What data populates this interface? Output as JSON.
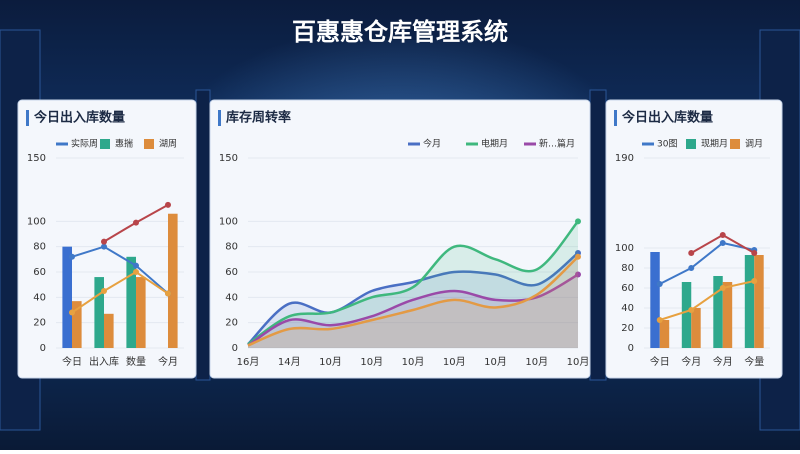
{
  "header": {
    "title": "百惠惠仓库管理系统"
  },
  "chart_data": [
    {
      "type": "combo",
      "title": "今日出入库数量",
      "categories": [
        "今日",
        "出入库",
        "数量",
        "今月"
      ],
      "ylim": [
        0,
        150
      ],
      "yticks": [
        0,
        20,
        40,
        60,
        80,
        100,
        150
      ],
      "series": [
        {
          "name": "实际周",
          "kind": "line",
          "color": "#3f78c8",
          "values": [
            72,
            80,
            65,
            43
          ]
        },
        {
          "name": "惠揣",
          "kind": "bar",
          "color": "#2ea88c",
          "values": [
            80,
            56,
            72,
            null
          ]
        },
        {
          "name": "湖周",
          "kind": "bar",
          "color": "#dd8c3c",
          "values": [
            37,
            27,
            56,
            106
          ]
        },
        {
          "kind": "line",
          "color": "#b8454a",
          "values": [
            null,
            84,
            99,
            113
          ]
        },
        {
          "kind": "line",
          "color": "#e7a140",
          "values": [
            28,
            45,
            60,
            43
          ]
        }
      ]
    },
    {
      "type": "line",
      "title": "库存周转率",
      "fill_area": true,
      "categories": [
        "16月",
        "14月",
        "10月",
        "10月",
        "10月",
        "10月",
        "10月",
        "10月",
        "10月"
      ],
      "ylim": [
        0,
        150
      ],
      "yticks": [
        0,
        20,
        40,
        60,
        80,
        100,
        150
      ],
      "series": [
        {
          "name": "今月",
          "color": "#4a6fc4",
          "values": [
            3,
            35,
            28,
            45,
            52,
            60,
            58,
            50,
            75
          ]
        },
        {
          "name": "电期月",
          "color": "#3fb87e",
          "values": [
            3,
            25,
            28,
            40,
            48,
            80,
            70,
            62,
            100
          ]
        },
        {
          "name": "新…篇月",
          "color": "#9a4aa8",
          "values": [
            2,
            22,
            18,
            25,
            38,
            45,
            38,
            40,
            58
          ]
        },
        {
          "color": "#e39a45",
          "values": [
            2,
            15,
            15,
            22,
            30,
            38,
            32,
            42,
            72
          ]
        }
      ]
    },
    {
      "type": "combo",
      "title": "今日出入库数量",
      "categories": [
        "今日",
        "今月",
        "今月",
        "今量"
      ],
      "ylim": [
        0,
        190
      ],
      "yticks": [
        0,
        20,
        40,
        60,
        80,
        100,
        190
      ],
      "series": [
        {
          "name": "30图",
          "kind": "line",
          "color": "#3f78c8",
          "values": [
            64,
            80,
            105,
            98
          ]
        },
        {
          "name": "现期月",
          "kind": "bar",
          "color": "#2ea88c",
          "values": [
            96,
            66,
            72,
            93
          ]
        },
        {
          "name": "调月",
          "kind": "bar",
          "color": "#dd8c3c",
          "values": [
            28,
            40,
            66,
            93
          ]
        },
        {
          "kind": "line",
          "color": "#b8454a",
          "values": [
            null,
            95,
            113,
            95
          ]
        },
        {
          "kind": "line",
          "color": "#e7a140",
          "values": [
            28,
            38,
            60,
            67
          ]
        }
      ]
    }
  ]
}
